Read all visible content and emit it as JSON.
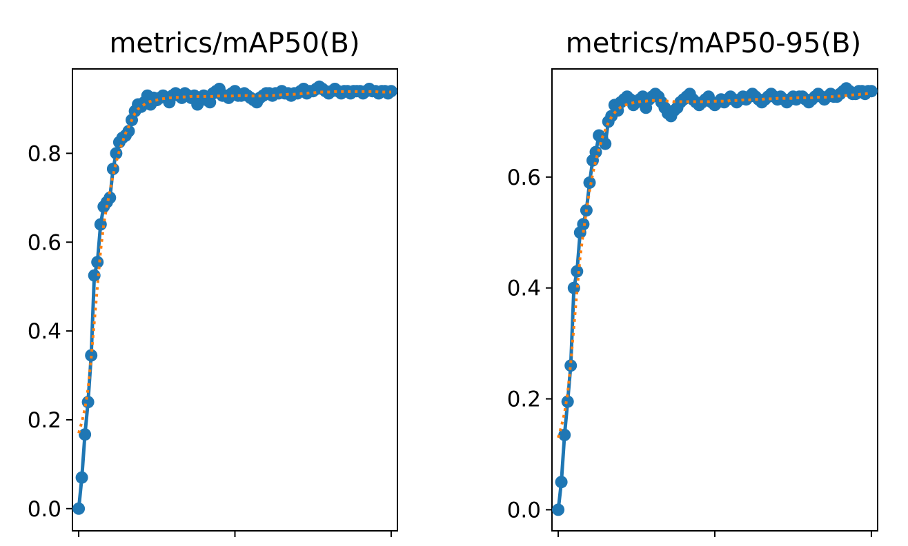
{
  "colors": {
    "results_line": "#1f77b4",
    "smooth_line": "#ff7f0e",
    "axis": "#000000",
    "background": "#ffffff"
  },
  "chart_data": [
    {
      "type": "line",
      "title": "metrics/mAP50(B)",
      "xlabel": "",
      "ylabel": "",
      "xlim": [
        -2,
        102
      ],
      "ylim": [
        -0.05,
        0.99
      ],
      "x_ticks": [
        0,
        50,
        100
      ],
      "y_ticks": [
        0.0,
        0.2,
        0.4,
        0.6,
        0.8
      ],
      "y_tick_labels": [
        "0.0",
        "0.2",
        "0.4",
        "0.6",
        "0.8"
      ],
      "grid": false,
      "x": [
        0,
        1,
        2,
        3,
        4,
        5,
        6,
        7,
        8,
        9,
        10,
        11,
        12,
        13,
        14,
        15,
        16,
        17,
        18,
        19,
        20,
        21,
        22,
        23,
        24,
        25,
        26,
        27,
        28,
        29,
        30,
        31,
        32,
        33,
        34,
        35,
        36,
        37,
        38,
        39,
        40,
        41,
        42,
        43,
        44,
        45,
        46,
        47,
        48,
        49,
        50,
        51,
        52,
        53,
        54,
        55,
        56,
        57,
        58,
        59,
        60,
        61,
        62,
        63,
        64,
        65,
        66,
        67,
        68,
        69,
        70,
        71,
        72,
        73,
        74,
        75,
        76,
        77,
        78,
        79,
        80,
        81,
        82,
        83,
        84,
        85,
        86,
        87,
        88,
        89,
        90,
        91,
        92,
        93,
        94,
        95,
        96,
        97,
        98,
        99,
        100
      ],
      "series": [
        {
          "name": "results",
          "style": "solid-marker",
          "values": [
            0.0,
            0.07,
            0.167,
            0.24,
            0.345,
            0.525,
            0.555,
            0.64,
            0.68,
            0.69,
            0.7,
            0.765,
            0.8,
            0.825,
            0.835,
            0.84,
            0.85,
            0.875,
            0.895,
            0.91,
            0.905,
            0.915,
            0.93,
            0.91,
            0.925,
            0.92,
            0.925,
            0.93,
            0.925,
            0.915,
            0.93,
            0.935,
            0.93,
            0.925,
            0.935,
            0.93,
            0.925,
            0.93,
            0.91,
            0.925,
            0.93,
            0.92,
            0.915,
            0.935,
            0.94,
            0.945,
            0.93,
            0.93,
            0.925,
            0.935,
            0.94,
            0.93,
            0.93,
            0.935,
            0.93,
            0.925,
            0.92,
            0.915,
            0.925,
            0.93,
            0.935,
            0.935,
            0.93,
            0.935,
            0.935,
            0.94,
            0.935,
            0.935,
            0.93,
            0.935,
            0.935,
            0.94,
            0.945,
            0.935,
            0.94,
            0.94,
            0.945,
            0.95,
            0.945,
            0.94,
            0.935,
            0.94,
            0.945,
            0.94,
            0.935,
            0.94,
            0.94,
            0.935,
            0.94,
            0.94,
            0.94,
            0.935,
            0.94,
            0.945,
            0.94,
            0.94,
            0.935,
            0.94,
            0.94,
            0.935,
            0.94
          ]
        },
        {
          "name": "smooth",
          "style": "dotted",
          "values": [
            0.17,
            0.195,
            0.225,
            0.27,
            0.34,
            0.42,
            0.5,
            0.58,
            0.64,
            0.68,
            0.715,
            0.75,
            0.78,
            0.805,
            0.825,
            0.845,
            0.86,
            0.875,
            0.89,
            0.9,
            0.905,
            0.91,
            0.915,
            0.917,
            0.919,
            0.92,
            0.922,
            0.923,
            0.924,
            0.925,
            0.925,
            0.926,
            0.926,
            0.927,
            0.927,
            0.927,
            0.928,
            0.928,
            0.928,
            0.928,
            0.928,
            0.928,
            0.928,
            0.928,
            0.929,
            0.929,
            0.929,
            0.929,
            0.929,
            0.929,
            0.93,
            0.93,
            0.93,
            0.93,
            0.93,
            0.929,
            0.929,
            0.929,
            0.929,
            0.929,
            0.93,
            0.93,
            0.93,
            0.931,
            0.931,
            0.932,
            0.932,
            0.933,
            0.933,
            0.933,
            0.934,
            0.934,
            0.935,
            0.935,
            0.936,
            0.936,
            0.937,
            0.938,
            0.938,
            0.938,
            0.938,
            0.938,
            0.939,
            0.939,
            0.939,
            0.939,
            0.939,
            0.939,
            0.939,
            0.939,
            0.939,
            0.939,
            0.939,
            0.939,
            0.939,
            0.939,
            0.938,
            0.938,
            0.938,
            0.938,
            0.938
          ]
        }
      ]
    },
    {
      "type": "line",
      "title": "metrics/mAP50-95(B)",
      "xlabel": "",
      "ylabel": "",
      "xlim": [
        -2,
        102
      ],
      "ylim": [
        -0.038,
        0.795
      ],
      "x_ticks": [
        0,
        50,
        100
      ],
      "y_ticks": [
        0.0,
        0.2,
        0.4,
        0.6
      ],
      "y_tick_labels": [
        "0.0",
        "0.2",
        "0.4",
        "0.6"
      ],
      "grid": false,
      "x": [
        0,
        1,
        2,
        3,
        4,
        5,
        6,
        7,
        8,
        9,
        10,
        11,
        12,
        13,
        14,
        15,
        16,
        17,
        18,
        19,
        20,
        21,
        22,
        23,
        24,
        25,
        26,
        27,
        28,
        29,
        30,
        31,
        32,
        33,
        34,
        35,
        36,
        37,
        38,
        39,
        40,
        41,
        42,
        43,
        44,
        45,
        46,
        47,
        48,
        49,
        50,
        51,
        52,
        53,
        54,
        55,
        56,
        57,
        58,
        59,
        60,
        61,
        62,
        63,
        64,
        65,
        66,
        67,
        68,
        69,
        70,
        71,
        72,
        73,
        74,
        75,
        76,
        77,
        78,
        79,
        80,
        81,
        82,
        83,
        84,
        85,
        86,
        87,
        88,
        89,
        90,
        91,
        92,
        93,
        94,
        95,
        96,
        97,
        98,
        99,
        100
      ],
      "series": [
        {
          "name": "results",
          "style": "solid-marker",
          "values": [
            0.0,
            0.05,
            0.135,
            0.195,
            0.26,
            0.4,
            0.43,
            0.5,
            0.515,
            0.54,
            0.59,
            0.63,
            0.645,
            0.675,
            0.67,
            0.66,
            0.7,
            0.71,
            0.73,
            0.72,
            0.735,
            0.74,
            0.745,
            0.74,
            0.73,
            0.735,
            0.74,
            0.745,
            0.725,
            0.74,
            0.745,
            0.75,
            0.745,
            0.735,
            0.725,
            0.715,
            0.71,
            0.72,
            0.725,
            0.735,
            0.74,
            0.745,
            0.75,
            0.74,
            0.735,
            0.73,
            0.735,
            0.74,
            0.745,
            0.735,
            0.73,
            0.735,
            0.74,
            0.735,
            0.74,
            0.745,
            0.74,
            0.735,
            0.74,
            0.745,
            0.74,
            0.745,
            0.75,
            0.745,
            0.74,
            0.735,
            0.74,
            0.745,
            0.75,
            0.745,
            0.74,
            0.745,
            0.74,
            0.735,
            0.74,
            0.745,
            0.74,
            0.745,
            0.745,
            0.74,
            0.735,
            0.74,
            0.745,
            0.75,
            0.745,
            0.74,
            0.745,
            0.75,
            0.745,
            0.745,
            0.75,
            0.755,
            0.76,
            0.755,
            0.75,
            0.75,
            0.755,
            0.755,
            0.75,
            0.755,
            0.755
          ]
        },
        {
          "name": "smooth",
          "style": "dotted",
          "values": [
            0.13,
            0.15,
            0.175,
            0.21,
            0.265,
            0.33,
            0.395,
            0.455,
            0.5,
            0.54,
            0.575,
            0.605,
            0.63,
            0.65,
            0.67,
            0.685,
            0.698,
            0.708,
            0.716,
            0.722,
            0.726,
            0.729,
            0.731,
            0.733,
            0.734,
            0.735,
            0.736,
            0.737,
            0.737,
            0.738,
            0.738,
            0.738,
            0.738,
            0.738,
            0.738,
            0.737,
            0.737,
            0.736,
            0.736,
            0.736,
            0.736,
            0.736,
            0.736,
            0.736,
            0.736,
            0.736,
            0.736,
            0.736,
            0.736,
            0.737,
            0.737,
            0.737,
            0.737,
            0.737,
            0.737,
            0.738,
            0.738,
            0.738,
            0.738,
            0.739,
            0.739,
            0.739,
            0.74,
            0.74,
            0.74,
            0.74,
            0.741,
            0.741,
            0.741,
            0.741,
            0.742,
            0.742,
            0.742,
            0.742,
            0.742,
            0.742,
            0.743,
            0.743,
            0.743,
            0.743,
            0.743,
            0.743,
            0.744,
            0.744,
            0.744,
            0.744,
            0.744,
            0.745,
            0.745,
            0.746,
            0.746,
            0.747,
            0.747,
            0.748,
            0.748,
            0.749,
            0.749,
            0.75,
            0.75,
            0.751,
            0.751
          ]
        }
      ]
    }
  ]
}
